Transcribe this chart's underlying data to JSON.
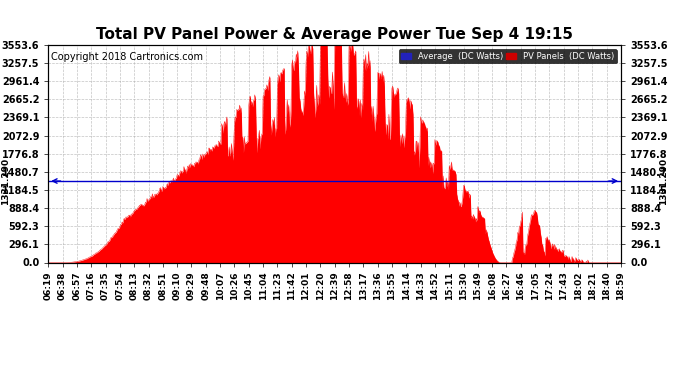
{
  "title": "Total PV Panel Power & Average Power Tue Sep 4 19:15",
  "copyright": "Copyright 2018 Cartronics.com",
  "yticks": [
    0.0,
    296.1,
    592.3,
    888.4,
    1184.5,
    1480.7,
    1776.8,
    2072.9,
    2369.1,
    2665.2,
    2961.4,
    3257.5,
    3553.6
  ],
  "ymax": 3553.6,
  "average_value": 1331.29,
  "bg_color": "#ffffff",
  "fill_color": "#ff0000",
  "line_color": "#ff0000",
  "avg_line_color": "#0000cc",
  "grid_color": "#aaaaaa",
  "title_fontsize": 11,
  "copyright_fontsize": 7,
  "tick_fontsize": 7,
  "xtick_labels": [
    "06:19",
    "06:38",
    "06:57",
    "07:16",
    "07:35",
    "07:54",
    "08:13",
    "08:32",
    "08:51",
    "09:10",
    "09:29",
    "09:48",
    "10:07",
    "10:26",
    "10:45",
    "11:04",
    "11:23",
    "11:42",
    "12:01",
    "12:20",
    "12:39",
    "12:58",
    "13:17",
    "13:36",
    "13:55",
    "14:14",
    "14:33",
    "14:52",
    "15:11",
    "15:30",
    "15:49",
    "16:08",
    "16:27",
    "16:46",
    "17:05",
    "17:24",
    "17:43",
    "18:02",
    "18:21",
    "18:40",
    "18:59"
  ]
}
